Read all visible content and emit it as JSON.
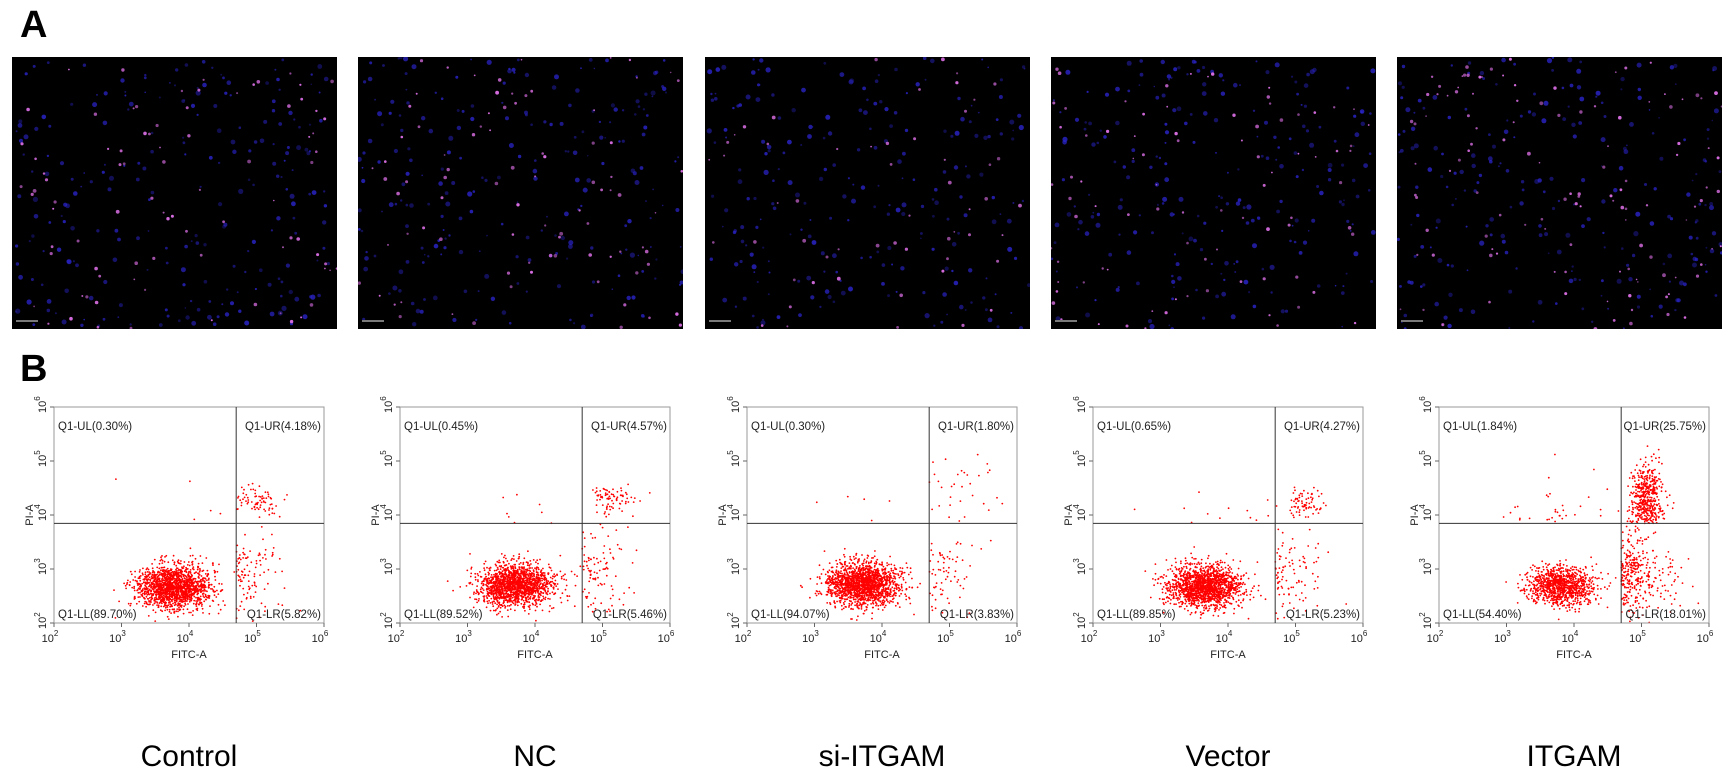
{
  "panel_labels": {
    "a": "A",
    "b": "B"
  },
  "colors": {
    "micro_background": "#000000",
    "nuclei_blue": "#2a24c8",
    "apoptotic_magenta": "#d66ce0",
    "dot_plot_red": "#ff0000",
    "gate_line": "#333333"
  },
  "chart_data": {
    "type": "scatter",
    "note_points": "density scatter",
    "x_axis": {
      "label": "FITC-A",
      "scale": "log",
      "range": [
        100,
        1000000
      ],
      "ticks": [
        2,
        3,
        4,
        5,
        6
      ]
    },
    "y_axis": {
      "label": "PI-A",
      "scale": "log",
      "range": [
        100,
        1000000
      ],
      "ticks": [
        2,
        3,
        4,
        5,
        6
      ]
    },
    "gate": {
      "x": 50000,
      "y": 7000
    },
    "series": [
      {
        "name": "Control",
        "UL": "Q1-UL(0.30%)",
        "UR": "Q1-UR(4.18%)",
        "LL": "Q1-LL(89.70%)",
        "LR": "Q1-LR(5.82%)",
        "percentages": {
          "UL": 0.3,
          "UR": 4.18,
          "LL": 89.7,
          "LR": 5.82
        }
      },
      {
        "name": "NC",
        "UL": "Q1-UL(0.45%)",
        "UR": "Q1-UR(4.57%)",
        "LL": "Q1-LL(89.52%)",
        "LR": "Q1-LR(5.46%)",
        "percentages": {
          "UL": 0.45,
          "UR": 4.57,
          "LL": 89.52,
          "LR": 5.46
        }
      },
      {
        "name": "si-ITGAM",
        "UL": "Q1-UL(0.30%)",
        "UR": "Q1-UR(1.80%)",
        "LL": "Q1-LL(94.07%)",
        "LR": "Q1-LR(3.83%)",
        "percentages": {
          "UL": 0.3,
          "UR": 1.8,
          "LL": 94.07,
          "LR": 3.83
        }
      },
      {
        "name": "Vector",
        "UL": "Q1-UL(0.65%)",
        "UR": "Q1-UR(4.27%)",
        "LL": "Q1-LL(89.85%)",
        "LR": "Q1-LR(5.23%)",
        "percentages": {
          "UL": 0.65,
          "UR": 4.27,
          "LL": 89.85,
          "LR": 5.23
        }
      },
      {
        "name": "ITGAM",
        "UL": "Q1-UL(1.84%)",
        "UR": "Q1-UR(25.75%)",
        "LL": "Q1-LL(54.40%)",
        "LR": "Q1-LR(18.01%)",
        "percentages": {
          "UL": 1.84,
          "UR": 25.75,
          "LL": 54.4,
          "LR": 18.01
        }
      }
    ]
  }
}
